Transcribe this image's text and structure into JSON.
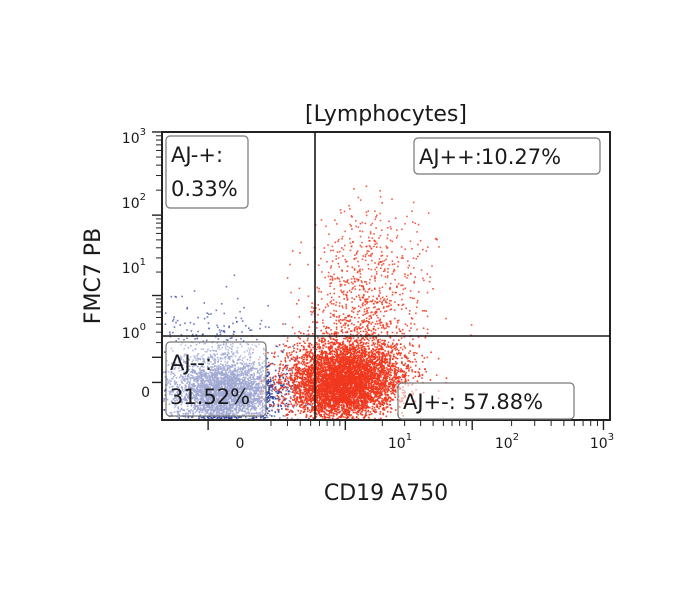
{
  "chart_data": {
    "type": "scatter",
    "title": "[Lymphocytes]",
    "xlabel": "CD19 A750",
    "ylabel": "FMC7 PB",
    "x_scale": "biexponential",
    "y_scale": "biexponential",
    "x_ticks": [
      {
        "value": 0,
        "label": "0"
      },
      {
        "value": 10,
        "label": "10",
        "exp": "1"
      },
      {
        "value": 100,
        "label": "10",
        "exp": "2"
      },
      {
        "value": 1000,
        "label": "10",
        "exp": "3"
      }
    ],
    "y_ticks": [
      {
        "value": 0,
        "label": "0"
      },
      {
        "value": 1,
        "label": "10",
        "exp": "0"
      },
      {
        "value": 10,
        "label": "10",
        "exp": "1"
      },
      {
        "value": 100,
        "label": "10",
        "exp": "2"
      },
      {
        "value": 1000,
        "label": "10",
        "exp": "3"
      }
    ],
    "quadrant_dividers": {
      "x": 2.5,
      "y": 0.85
    },
    "quadrants": [
      {
        "name": "AJ-+",
        "label": "AJ-+:",
        "value": "0.33%"
      },
      {
        "name": "AJ++",
        "label": "AJ++:",
        "value": "10.27%"
      },
      {
        "name": "AJ--",
        "label": "AJ--:",
        "value": "31.52%"
      },
      {
        "name": "AJ+-",
        "label": "AJ+-:",
        "value": "57.88%"
      }
    ],
    "populations": [
      {
        "color": "#2c3e9c",
        "x_center": 0.3,
        "y_center": -0.3
      },
      {
        "color": "#f0381e",
        "x_center": 10,
        "y_center": 0.2
      }
    ],
    "grid": false,
    "legend": "none"
  }
}
